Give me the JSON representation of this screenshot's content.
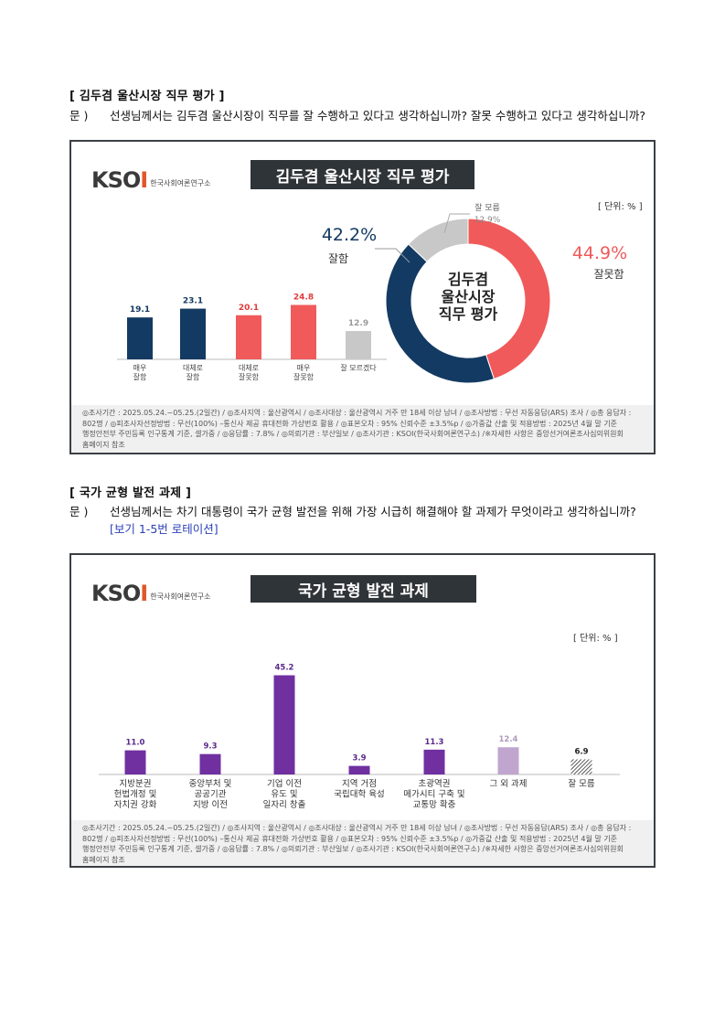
{
  "section1": {
    "title": "[ 김두겸 울산시장 직무 평가 ]",
    "q_label": "문 )",
    "question": "선생님께서는 김두겸 울산시장이 직무를 잘 수행하고 있다고 생각하십니까? 잘못 수행하고 있다고 생각하십니까?"
  },
  "section2": {
    "title": "[ 국가 균형 발전 과제 ]",
    "q_label": "문 )",
    "question": "선생님께서는 차기 대통령이 국가 균형 발전을 위해 가장 시급히 해결해야 할 과제가 무엇이라고 생각하십니까?",
    "rotation_note": "[보기 1-5번 로테이션]"
  },
  "logo": {
    "text": "KSOI",
    "org": "한국사회여론연구소"
  },
  "footer": {
    "line1": "◎조사기간 : 2025.05.24.~05.25.(2일간) / ◎조사지역 : 울산광역시 / ◎조사대상 : 울산광역시 거주 만 18세 이상 남녀 / ◎조사방법 : 무선 자동응답(ARS) 조사 / ◎총 응답자 :",
    "line2": "802명 / ◎피조사자선정방법 : 무선(100%) –통신사 제공 휴대전화 가상번호 활용 / ◎표본오차 : 95% 신뢰수준 ±3.5%p / ◎가중값 산출 및 적용방법 : 2025년 4월 말 기준",
    "line3": "행정안전부 주민등록 인구통계 기준, 셀가중 / ◎응답률 : 7.8% / ◎의뢰기관 : 부산일보 / ◎조사기관 : KSOI(한국사회여론연구소) /※자세한 사항은 중앙선거여론조사심의위원회",
    "line4": "홈페이지 참조"
  },
  "colors": {
    "navy": "#133a62",
    "red": "#f05a5a",
    "gray": "#c8c8c8",
    "purple": "#7030a0",
    "lavender": "#c0a6cf",
    "banner": "#2f3438"
  },
  "chart_data": [
    {
      "type": "bar+donut",
      "title": "김두겸 울산시장 직무 평가",
      "unit": "[ 단위: % ]",
      "categories": [
        "매우\n잘함",
        "대체로\n잘함",
        "대체로\n잘못함",
        "매우\n잘못함",
        "잘 모르겠다"
      ],
      "values": [
        19.1,
        23.1,
        20.1,
        24.8,
        12.9
      ],
      "bar_colors": [
        "#133a62",
        "#133a62",
        "#f05a5a",
        "#f05a5a",
        "#c8c8c8"
      ],
      "label_colors": [
        "#133a62",
        "#133a62",
        "#e03a3a",
        "#e03a3a",
        "#9a9a9a"
      ],
      "donut": {
        "center_label": [
          "김두겸",
          "울산시장",
          "직무 평가"
        ],
        "slices": [
          {
            "name": "잘못함",
            "value": 44.9,
            "color": "#f05a5a"
          },
          {
            "name": "잘함",
            "value": 42.2,
            "color": "#133a62"
          },
          {
            "name": "잘 모름",
            "value": 12.9,
            "color": "#c8c8c8"
          }
        ],
        "labels": {
          "good_pct": "42.2%",
          "good_name": "잘함",
          "bad_pct": "44.9%",
          "bad_name": "잘못함",
          "dk_name": "잘 모름",
          "dk_pct": "12.9%"
        }
      }
    },
    {
      "type": "bar",
      "title": "국가 균형 발전 과제",
      "unit": "[ 단위: % ]",
      "categories": [
        "지방분권\n헌법개정 및\n자치권 강화",
        "중앙부처 및\n공공기관\n지방 이전",
        "기업 이전\n유도 및\n일자리 창출",
        "지역 거점\n국립대학 육성",
        "초광역권\n메가시티 구축 및\n교통망 확충",
        "그 외 과제",
        "잘 모름"
      ],
      "values": [
        11.0,
        9.3,
        45.2,
        3.9,
        11.3,
        12.4,
        6.9
      ],
      "value_labels": [
        "11.0",
        "9.3",
        "45.2",
        "3.9",
        "11.3",
        "12.4",
        "6.9"
      ],
      "bar_colors": [
        "#7030a0",
        "#7030a0",
        "#7030a0",
        "#7030a0",
        "#7030a0",
        "#c0a6cf",
        "hatch"
      ],
      "label_colors": [
        "#5a2a8a",
        "#5a2a8a",
        "#5a2a8a",
        "#5a2a8a",
        "#5a2a8a",
        "#b09abf",
        "#222222"
      ]
    }
  ]
}
